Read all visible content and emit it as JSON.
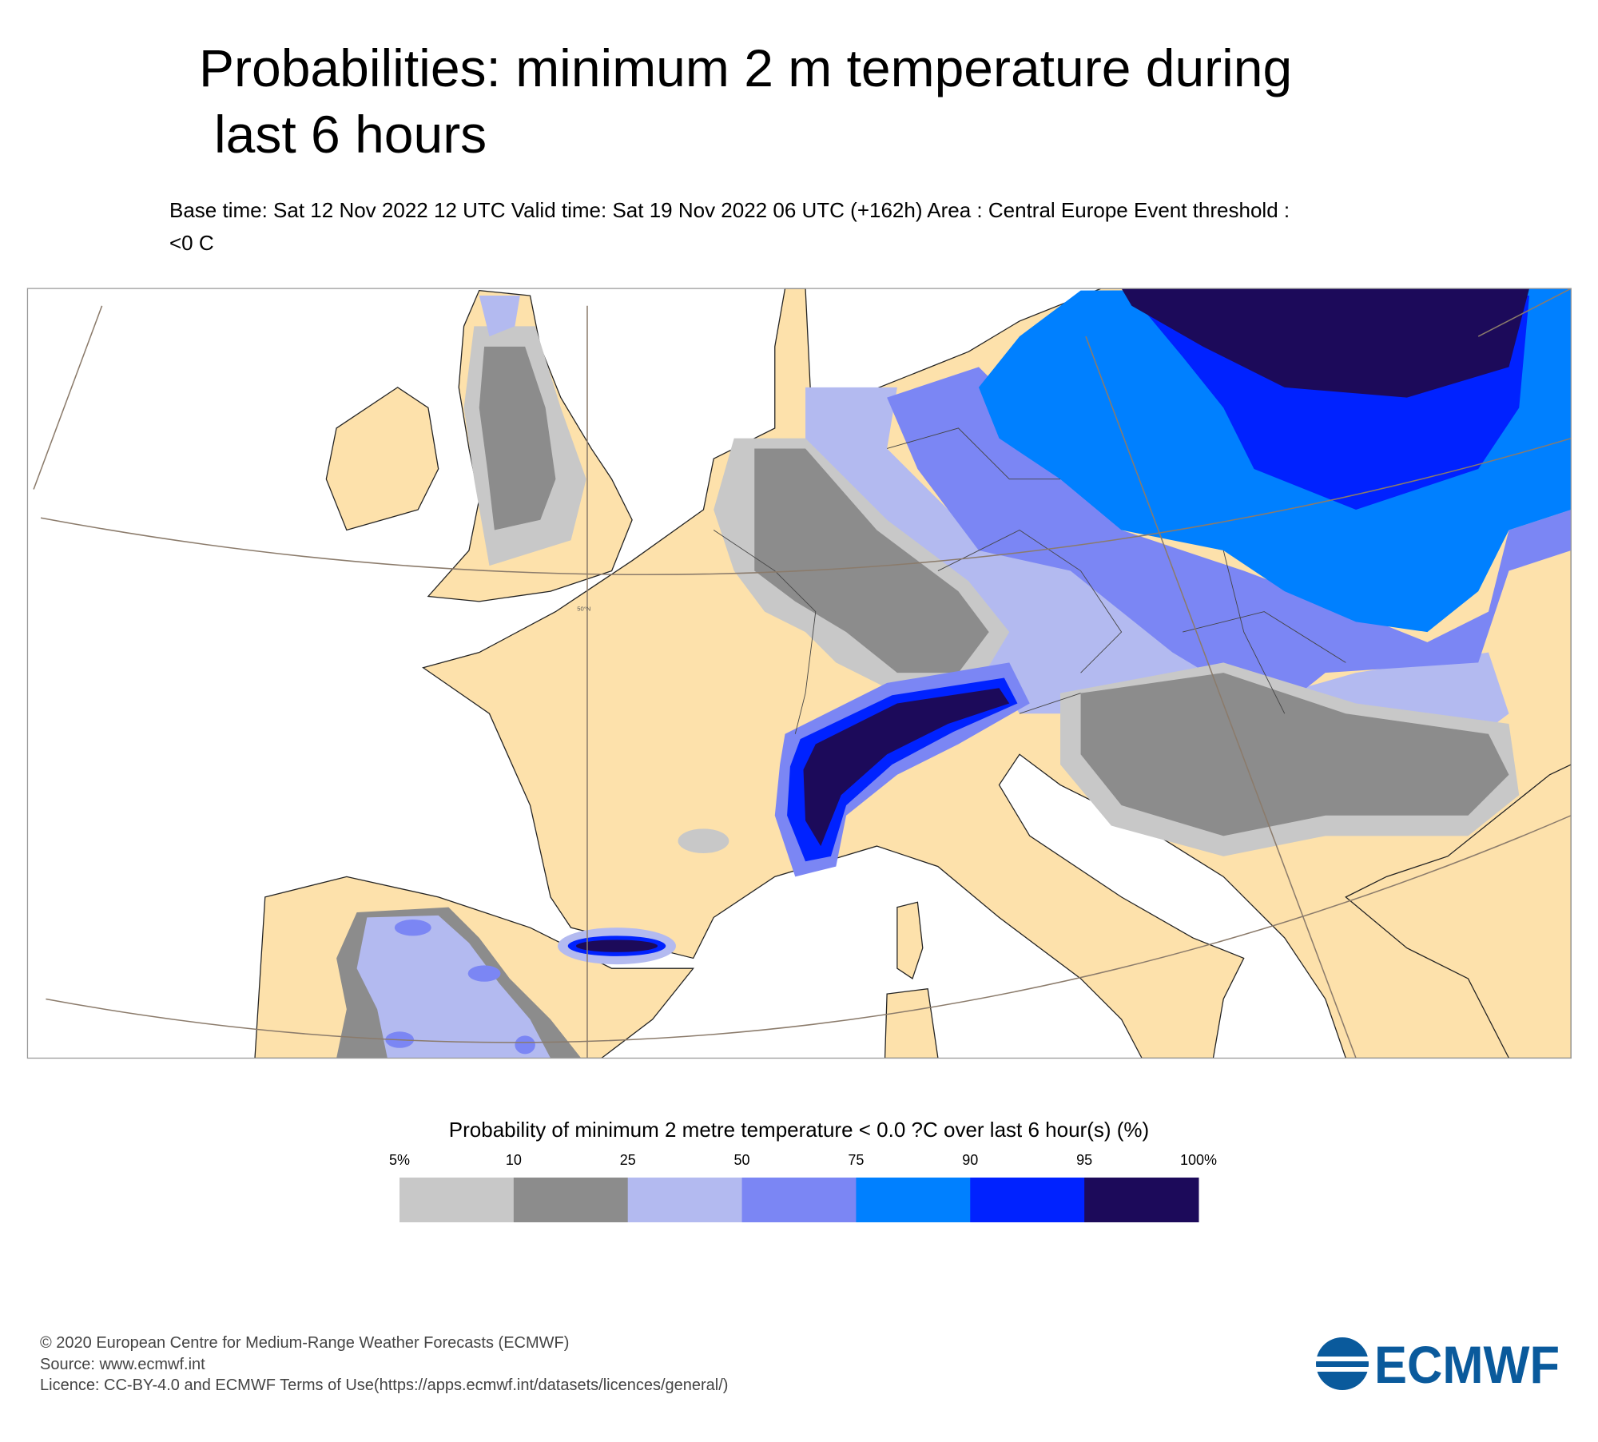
{
  "header": {
    "title_lines": [
      "Probabilities: minimum 2 m temperature during",
      "last 6 hours"
    ],
    "subtitle_lines": [
      "Base time: Sat 12 Nov 2022 12 UTC Valid time: Sat 19 Nov 2022 06 UTC (+162h) Area : Central Europe Event threshold :",
      "<0 C"
    ]
  },
  "map": {
    "graticule_label": "50°N"
  },
  "legend": {
    "title": "Probability of minimum 2 metre temperature < 0.0 ?C over last 6 hour(s) (%)",
    "ticks": [
      "5%",
      "10",
      "25",
      "50",
      "75",
      "90",
      "95",
      "100%"
    ],
    "colors": [
      "#c8c8c8",
      "#8c8c8c",
      "#b3baf0",
      "#7b86f4",
      "#0080ff",
      "#0022ff",
      "#1c0a5a"
    ]
  },
  "footer": {
    "lines": [
      "© 2020 European Centre for Medium-Range Weather Forecasts (ECMWF)",
      "Source: www.ecmwf.int",
      "Licence: CC-BY-4.0 and ECMWF Terms of Use(https://apps.ecmwf.int/datasets/licences/general/)"
    ],
    "logo": "ECMWF"
  }
}
